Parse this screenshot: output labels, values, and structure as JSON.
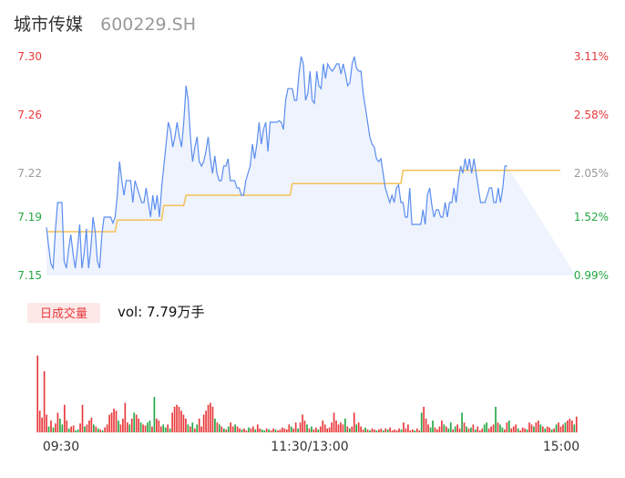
{
  "header": {
    "name": "城市传媒",
    "code": "600229.SH"
  },
  "colors": {
    "price_line": "#5b8def",
    "price_fill": "#eef3fd",
    "avg_line": "#f5c05a",
    "up": "#e8393b",
    "down": "#25a744",
    "neutral": "#999999",
    "badge_bg": "#fde8e8"
  },
  "volume_panel": {
    "badge_label": "日成交量",
    "vol_text": "vol: 7.79万手"
  },
  "chart_data": [
    {
      "type": "line",
      "title": "",
      "y_ticks": [
        "7.30",
        "7.26",
        "7.22",
        "7.19",
        "7.15"
      ],
      "y_tick_values": [
        7.3,
        7.26,
        7.22,
        7.19,
        7.15
      ],
      "y_right_ticks": [
        "3.11%",
        "2.58%",
        "2.05%",
        "1.52%",
        "0.99%"
      ],
      "ylim": [
        7.15,
        7.3
      ],
      "x_ticks": [
        "09:30",
        "11:30/13:00",
        "15:00"
      ],
      "minutes": 240,
      "series": [
        {
          "role": "price",
          "values": [
            7.183,
            7.17,
            7.158,
            7.155,
            7.18,
            7.2,
            7.2,
            7.2,
            7.16,
            7.155,
            7.168,
            7.178,
            7.165,
            7.155,
            7.168,
            7.185,
            7.155,
            7.165,
            7.182,
            7.155,
            7.168,
            7.19,
            7.18,
            7.16,
            7.155,
            7.178,
            7.19,
            7.19,
            7.19,
            7.19,
            7.186,
            7.19,
            7.205,
            7.228,
            7.215,
            7.205,
            7.215,
            7.215,
            7.215,
            7.2,
            7.215,
            7.21,
            7.205,
            7.2,
            7.2,
            7.21,
            7.2,
            7.19,
            7.205,
            7.195,
            7.205,
            7.19,
            7.21,
            7.225,
            7.24,
            7.255,
            7.25,
            7.238,
            7.245,
            7.255,
            7.245,
            7.238,
            7.255,
            7.28,
            7.27,
            7.245,
            7.228,
            7.238,
            7.245,
            7.228,
            7.225,
            7.228,
            7.235,
            7.245,
            7.23,
            7.22,
            7.232,
            7.22,
            7.215,
            7.215,
            7.225,
            7.225,
            7.23,
            7.215,
            7.215,
            7.215,
            7.21,
            7.21,
            7.205,
            7.205,
            7.215,
            7.22,
            7.225,
            7.24,
            7.23,
            7.24,
            7.255,
            7.24,
            7.25,
            7.255,
            7.235,
            7.255,
            7.255,
            7.255,
            7.255,
            7.256,
            7.255,
            7.25,
            7.27,
            7.278,
            7.278,
            7.278,
            7.27,
            7.27,
            7.288,
            7.3,
            7.295,
            7.27,
            7.275,
            7.29,
            7.27,
            7.268,
            7.29,
            7.28,
            7.278,
            7.295,
            7.285,
            7.295,
            7.292,
            7.29,
            7.292,
            7.295,
            7.295,
            7.288,
            7.295,
            7.288,
            7.28,
            7.282,
            7.295,
            7.3,
            7.292,
            7.29,
            7.29,
            7.275,
            7.265,
            7.255,
            7.245,
            7.24,
            7.238,
            7.23,
            7.228,
            7.23,
            7.22,
            7.21,
            7.205,
            7.2,
            7.205,
            7.2,
            7.21,
            7.212,
            7.2,
            7.2,
            7.19,
            7.19,
            7.21,
            7.185,
            7.185,
            7.185,
            7.185,
            7.185,
            7.195,
            7.185,
            7.205,
            7.21,
            7.198,
            7.19,
            7.195,
            7.195,
            7.19,
            7.19,
            7.2,
            7.19,
            7.2,
            7.2,
            7.21,
            7.2,
            7.215,
            7.225,
            7.22,
            7.23,
            7.222,
            7.23,
            7.22,
            7.23,
            7.22,
            7.21,
            7.2,
            7.2,
            7.2,
            7.205,
            7.21,
            7.21,
            7.2,
            7.2,
            7.21,
            7.2,
            7.21,
            7.225,
            7.225
          ],
          "color": "#5b8def"
        },
        {
          "role": "average",
          "values": [
            7.18,
            7.18,
            7.18,
            7.18,
            7.18,
            7.18,
            7.18,
            7.18,
            7.18,
            7.18,
            7.18,
            7.18,
            7.18,
            7.18,
            7.18,
            7.18,
            7.18,
            7.18,
            7.18,
            7.18,
            7.18,
            7.18,
            7.18,
            7.18,
            7.18,
            7.18,
            7.18,
            7.18,
            7.18,
            7.18,
            7.18,
            7.18,
            7.188,
            7.188,
            7.188,
            7.188,
            7.188,
            7.188,
            7.188,
            7.188,
            7.188,
            7.188,
            7.188,
            7.188,
            7.188,
            7.188,
            7.188,
            7.188,
            7.188,
            7.188,
            7.188,
            7.188,
            7.188,
            7.198,
            7.198,
            7.198,
            7.198,
            7.198,
            7.198,
            7.198,
            7.198,
            7.198,
            7.198,
            7.205,
            7.205,
            7.205,
            7.205,
            7.205,
            7.205,
            7.205,
            7.205,
            7.205,
            7.205,
            7.205,
            7.205,
            7.205,
            7.205,
            7.205,
            7.205,
            7.205,
            7.205,
            7.205,
            7.205,
            7.205,
            7.205,
            7.205,
            7.205,
            7.205,
            7.205,
            7.205,
            7.205,
            7.205,
            7.205,
            7.205,
            7.205,
            7.205,
            7.205,
            7.205,
            7.205,
            7.205,
            7.205,
            7.205,
            7.205,
            7.205,
            7.205,
            7.205,
            7.205,
            7.205,
            7.205,
            7.205,
            7.205,
            7.213,
            7.213,
            7.213,
            7.213,
            7.213,
            7.213,
            7.213,
            7.213,
            7.213,
            7.213,
            7.213,
            7.213,
            7.213,
            7.213,
            7.213,
            7.213,
            7.213,
            7.213,
            7.213,
            7.213,
            7.213,
            7.213,
            7.213,
            7.213,
            7.213,
            7.213,
            7.213,
            7.213,
            7.213,
            7.213,
            7.213,
            7.213,
            7.213,
            7.213,
            7.213,
            7.213,
            7.213,
            7.213,
            7.213,
            7.213,
            7.213,
            7.213,
            7.213,
            7.213,
            7.213,
            7.213,
            7.213,
            7.213,
            7.213,
            7.213,
            7.222,
            7.222,
            7.222,
            7.222,
            7.222,
            7.222,
            7.222,
            7.222,
            7.222,
            7.222,
            7.222,
            7.222,
            7.222,
            7.222,
            7.222,
            7.222,
            7.222,
            7.222,
            7.222,
            7.222,
            7.222,
            7.222,
            7.222,
            7.222,
            7.222,
            7.222,
            7.222,
            7.222,
            7.222,
            7.222,
            7.222,
            7.222,
            7.222,
            7.222,
            7.222,
            7.222,
            7.222,
            7.222,
            7.222,
            7.222,
            7.222,
            7.222,
            7.222,
            7.222,
            7.222,
            7.222,
            7.222,
            7.222,
            7.222,
            7.222,
            7.222,
            7.222,
            7.222,
            7.222,
            7.222,
            7.222,
            7.222,
            7.222,
            7.222,
            7.222,
            7.222,
            7.222,
            7.222,
            7.222,
            7.222,
            7.222,
            7.222,
            7.222,
            7.222,
            7.222,
            7.222,
            7.222
          ],
          "color": "#f5c05a"
        }
      ]
    },
    {
      "type": "bar",
      "title": "",
      "ylim": [
        0,
        1
      ],
      "values": [
        0.78,
        0.22,
        0.15,
        0.62,
        0.18,
        0.06,
        0.12,
        0.05,
        0.09,
        0.2,
        0.14,
        0.08,
        0.28,
        0.12,
        0.04,
        0.06,
        0.07,
        0.02,
        0.03,
        0.09,
        0.28,
        0.06,
        0.08,
        0.12,
        0.15,
        0.08,
        0.06,
        0.04,
        0.03,
        0.02,
        0.05,
        0.08,
        0.18,
        0.2,
        0.24,
        0.22,
        0.12,
        0.08,
        0.14,
        0.3,
        0.1,
        0.08,
        0.14,
        0.2,
        0.18,
        0.14,
        0.1,
        0.08,
        0.07,
        0.1,
        0.12,
        0.06,
        0.36,
        0.14,
        0.12,
        0.06,
        0.08,
        0.05,
        0.08,
        0.04,
        0.2,
        0.26,
        0.28,
        0.26,
        0.22,
        0.18,
        0.14,
        0.08,
        0.06,
        0.1,
        0.04,
        0.08,
        0.14,
        0.06,
        0.18,
        0.22,
        0.28,
        0.3,
        0.26,
        0.14,
        0.1,
        0.08,
        0.06,
        0.04,
        0.03,
        0.06,
        0.1,
        0.06,
        0.08,
        0.06,
        0.04,
        0.03,
        0.04,
        0.02,
        0.05,
        0.04,
        0.06,
        0.03,
        0.08,
        0.04,
        0.03,
        0.02,
        0.04,
        0.03,
        0.02,
        0.04,
        0.03,
        0.02,
        0.03,
        0.05,
        0.04,
        0.03,
        0.08,
        0.06,
        0.04,
        0.1,
        0.04,
        0.1,
        0.18,
        0.12,
        0.08,
        0.04,
        0.06,
        0.03,
        0.05,
        0.03,
        0.06,
        0.12,
        0.08,
        0.04,
        0.05,
        0.1,
        0.2,
        0.12,
        0.08,
        0.1,
        0.08,
        0.14,
        0.06,
        0.04,
        0.06,
        0.2,
        0.08,
        0.1,
        0.06,
        0.03,
        0.05,
        0.03,
        0.02,
        0.04,
        0.03,
        0.02,
        0.03,
        0.04,
        0.02,
        0.04,
        0.03,
        0.05,
        0.02,
        0.03,
        0.02,
        0.04,
        0.03,
        0.1,
        0.04,
        0.08,
        0.02,
        0.03,
        0.02,
        0.04,
        0.02,
        0.2,
        0.26,
        0.14,
        0.08,
        0.05,
        0.12,
        0.05,
        0.03,
        0.06,
        0.12,
        0.08,
        0.06,
        0.04,
        0.1,
        0.03,
        0.06,
        0.08,
        0.04,
        0.2,
        0.1,
        0.06,
        0.04,
        0.05,
        0.08,
        0.03,
        0.06,
        0.02,
        0.04,
        0.08,
        0.1,
        0.04,
        0.06,
        0.08,
        0.26,
        0.1,
        0.08,
        0.05,
        0.03,
        0.1,
        0.12,
        0.04,
        0.06,
        0.08,
        0.04,
        0.02,
        0.05,
        0.04,
        0.03,
        0.1,
        0.08,
        0.06,
        0.1,
        0.12,
        0.08,
        0.06,
        0.04,
        0.06,
        0.05,
        0.03,
        0.04,
        0.08,
        0.1,
        0.06,
        0.08,
        0.1,
        0.12,
        0.14,
        0.12,
        0.08,
        0.16
      ],
      "colors": [
        "up",
        "up",
        "up",
        "up",
        "up",
        "down",
        "up",
        "down",
        "up",
        "up",
        "down",
        "down",
        "up",
        "up",
        "down",
        "up",
        "up",
        "down",
        "down",
        "up",
        "up",
        "down",
        "up",
        "up",
        "up",
        "down",
        "up",
        "down",
        "up",
        "down",
        "up",
        "up",
        "up",
        "up",
        "up",
        "up",
        "down",
        "up",
        "up",
        "up",
        "up",
        "down",
        "up",
        "down",
        "up",
        "up",
        "down",
        "up",
        "up",
        "down",
        "down",
        "up",
        "down",
        "up",
        "up",
        "up",
        "down",
        "down",
        "up",
        "down",
        "up",
        "up",
        "up",
        "up",
        "up",
        "up",
        "up",
        "down",
        "up",
        "down",
        "up",
        "down",
        "up",
        "up",
        "up",
        "up",
        "up",
        "up",
        "up",
        "down",
        "up",
        "down",
        "up",
        "down",
        "up",
        "down",
        "up",
        "up",
        "down",
        "up",
        "up",
        "down",
        "up",
        "up",
        "down",
        "up",
        "up",
        "down",
        "up",
        "up",
        "down",
        "down",
        "up",
        "down",
        "up",
        "up",
        "down",
        "up",
        "up",
        "up",
        "up",
        "up",
        "up",
        "down",
        "up",
        "up",
        "down",
        "up",
        "up",
        "up",
        "down",
        "up",
        "down",
        "up",
        "up",
        "down",
        "up",
        "up",
        "up",
        "up",
        "up",
        "up",
        "up",
        "up",
        "up",
        "up",
        "up",
        "down",
        "up",
        "down",
        "up",
        "up",
        "down",
        "up",
        "up",
        "up",
        "down",
        "up",
        "down",
        "up",
        "up",
        "down",
        "up",
        "up",
        "down",
        "up",
        "down",
        "up",
        "up",
        "up",
        "up",
        "up",
        "down",
        "up",
        "up",
        "up",
        "up",
        "up",
        "down",
        "up",
        "up",
        "down",
        "up",
        "up",
        "up",
        "down",
        "down",
        "up",
        "up",
        "up",
        "up",
        "down",
        "up",
        "down",
        "down",
        "up",
        "down",
        "up",
        "up",
        "down",
        "up",
        "down",
        "up",
        "down",
        "up",
        "down",
        "up",
        "up",
        "up",
        "down",
        "down",
        "up",
        "up",
        "up",
        "down",
        "up",
        "down",
        "down",
        "up",
        "up",
        "down",
        "up",
        "up",
        "up",
        "down",
        "up",
        "up",
        "up",
        "down",
        "up",
        "up",
        "down",
        "up",
        "up",
        "down",
        "up",
        "down",
        "up",
        "up",
        "down",
        "up",
        "down",
        "up",
        "up",
        "up",
        "down",
        "up",
        "up",
        "up",
        "down",
        "up",
        "up",
        "down",
        "up",
        "up",
        "down"
      ]
    }
  ]
}
